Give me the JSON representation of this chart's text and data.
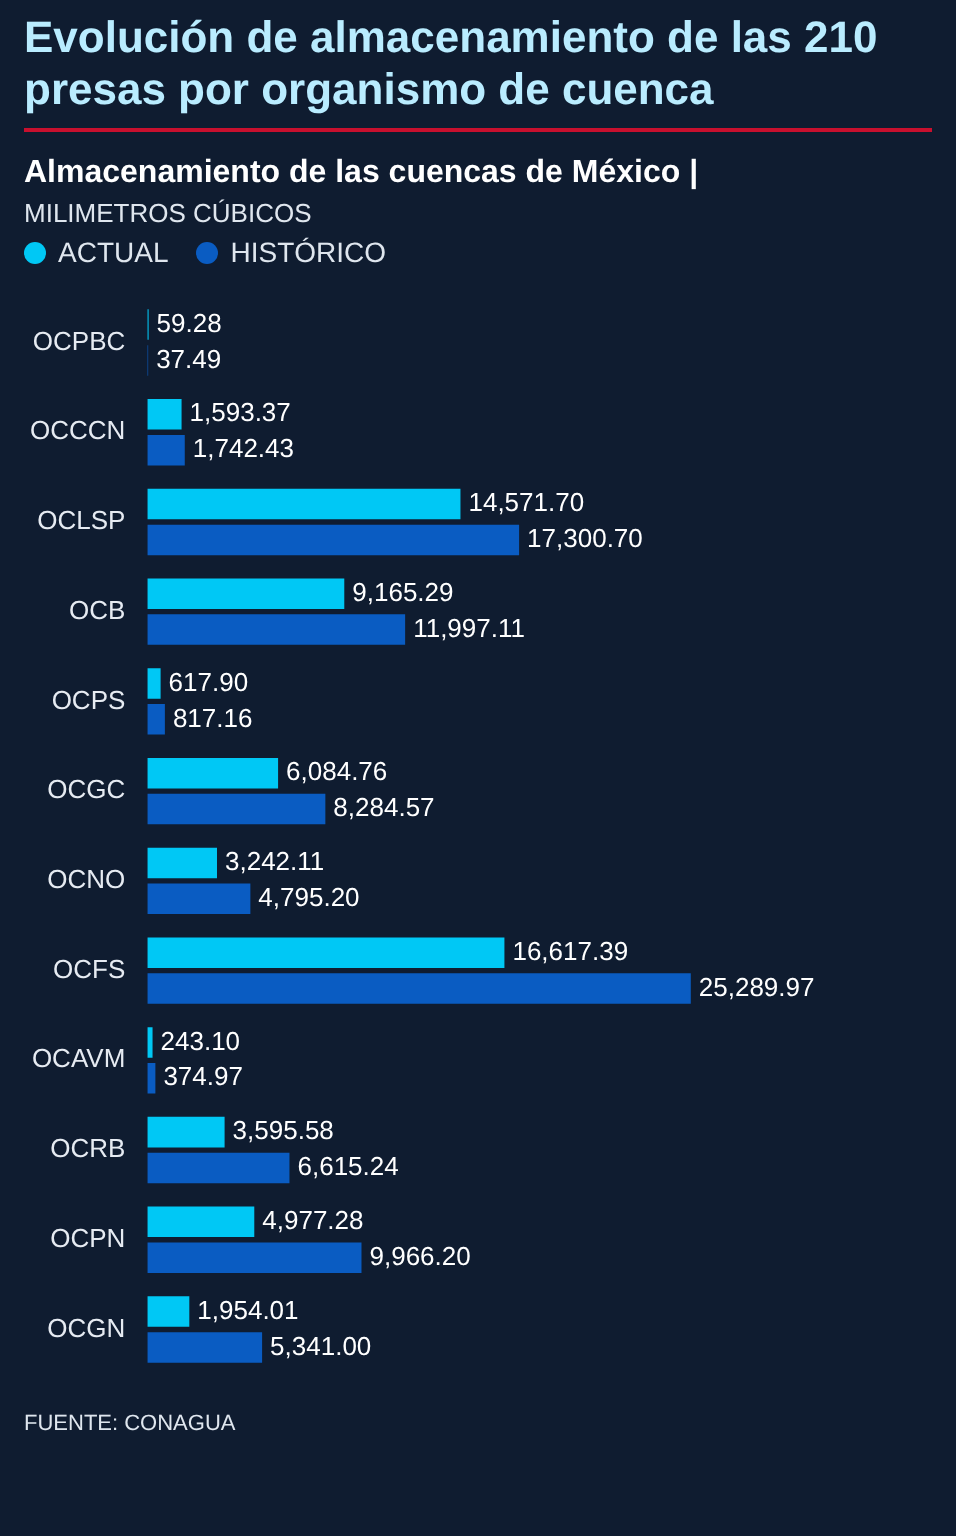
{
  "chart_data": {
    "type": "bar",
    "orientation": "horizontal",
    "title": "Evolución de almacenamiento de las 210 presas por organismo de cuenca",
    "subtitle": "Almacenamiento de las cuencas de México |",
    "annotations": [
      "MILIMETROS CÚBICOS",
      "FUENTE: CONAGUA"
    ],
    "categories": [
      "OCPBC",
      "OCCCN",
      "OCLSP",
      "OCB",
      "OCPS",
      "OCGC",
      "OCNO",
      "OCFS",
      "OCAVM",
      "OCRB",
      "OCPN",
      "OCGN"
    ],
    "series": [
      {
        "name": "ACTUAL",
        "color": "#00c8f5",
        "values": [
          59.28,
          1593.37,
          14571.7,
          9165.29,
          617.9,
          6084.76,
          3242.11,
          16617.39,
          243.1,
          3595.58,
          4977.28,
          1954.01
        ],
        "value_labels": [
          "59.28",
          "1,593.37",
          "14,571.70",
          "9,165.29",
          "617.90",
          "6,084.76",
          "3,242.11",
          "16,617.39",
          "243.10",
          "3,595.58",
          "4,977.28",
          "1,954.01"
        ]
      },
      {
        "name": "HISTÓRICO",
        "color": "#0a5cc2",
        "values": [
          37.49,
          1742.43,
          17300.7,
          11997.11,
          817.16,
          8284.57,
          4795.2,
          25289.97,
          374.97,
          6615.24,
          9966.2,
          5341.0
        ],
        "value_labels": [
          "37.49",
          "1,742.43",
          "17,300.70",
          "11,997.11",
          "817.16",
          "8,284.57",
          "4,795.20",
          "25,289.97",
          "374.97",
          "6,615.24",
          "9,966.20",
          "5,341.00"
        ]
      }
    ],
    "legend": "top left"
  }
}
